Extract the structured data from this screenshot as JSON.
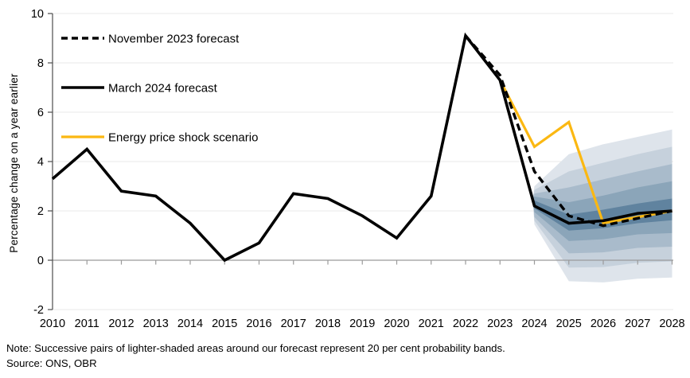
{
  "chart": {
    "y_axis_title": "Percentage change on a year earlier",
    "note": "Note: Successive pairs of lighter-shaded areas around our forecast represent 20 per cent probability bands.",
    "source": "Source: ONS, OBR"
  },
  "chart_data": {
    "type": "line",
    "title": "",
    "xlabel": "",
    "ylabel": "Percentage change on a year earlier",
    "ylim": [
      -2,
      10
    ],
    "ytick_step": 2,
    "yticks": [
      -2,
      0,
      2,
      4,
      6,
      8,
      10
    ],
    "x_years": [
      2010,
      2011,
      2012,
      2013,
      2014,
      2015,
      2016,
      2017,
      2018,
      2019,
      2020,
      2021,
      2022,
      2023,
      2024,
      2025,
      2026,
      2027,
      2028
    ],
    "grid": "horizontal-light",
    "legend_position": "top-left-inside",
    "colors": {
      "forecast_black": "#000000",
      "scenario_yellow": "#fbb812",
      "gridline": "#e9e9e9",
      "zero_axis": "#9b9b9b",
      "left_axis": "#4d4d4d"
    },
    "series": [
      {
        "name": "November 2023 forecast",
        "style": "dashed",
        "color": "#000000",
        "width": 3.4,
        "x": [
          2022,
          2023,
          2024,
          2025,
          2026,
          2027,
          2028
        ],
        "values": [
          9.1,
          7.5,
          3.6,
          1.8,
          1.4,
          1.7,
          2.0
        ]
      },
      {
        "name": "March 2024 forecast",
        "style": "solid",
        "color": "#000000",
        "width": 3.6,
        "x": [
          2010,
          2011,
          2012,
          2013,
          2014,
          2015,
          2016,
          2017,
          2018,
          2019,
          2020,
          2021,
          2022,
          2023,
          2024,
          2025,
          2026,
          2027,
          2028
        ],
        "values": [
          3.3,
          4.5,
          2.8,
          2.6,
          1.5,
          0.0,
          0.7,
          2.7,
          2.5,
          1.8,
          0.9,
          2.6,
          9.1,
          7.3,
          2.2,
          1.5,
          1.6,
          1.9,
          2.0
        ]
      },
      {
        "name": "Energy price shock scenario",
        "style": "solid",
        "color": "#fbb812",
        "width": 3.2,
        "x": [
          2023,
          2024,
          2025,
          2026,
          2027,
          2028
        ],
        "values": [
          7.3,
          4.6,
          5.6,
          1.5,
          1.75,
          2.0
        ]
      }
    ],
    "fan_bands": {
      "description": "20 per cent probability bands around March 2024 forecast, outermost (lightest) first",
      "x": [
        2023.95,
        2024,
        2025,
        2026,
        2027,
        2028
      ],
      "bands": [
        {
          "color": "#dee4eb",
          "upper": [
            2.5,
            3.0,
            4.3,
            4.7,
            5.0,
            5.3
          ],
          "lower": [
            2.5,
            1.45,
            -0.85,
            -0.9,
            -0.75,
            -0.7
          ]
        },
        {
          "color": "#c6d1dc",
          "upper": [
            2.5,
            2.85,
            3.6,
            3.95,
            4.3,
            4.6
          ],
          "lower": [
            2.5,
            1.6,
            -0.3,
            -0.28,
            -0.1,
            -0.05
          ]
        },
        {
          "color": "#a9bbcb",
          "upper": [
            2.5,
            2.7,
            2.95,
            3.28,
            3.6,
            3.9
          ],
          "lower": [
            2.5,
            1.75,
            0.28,
            0.32,
            0.5,
            0.55
          ]
        },
        {
          "color": "#8ba5b9",
          "upper": [
            2.5,
            2.58,
            2.35,
            2.62,
            2.95,
            3.2
          ],
          "lower": [
            2.5,
            1.95,
            0.78,
            0.85,
            1.05,
            1.1
          ]
        },
        {
          "color": "#60839f",
          "upper": [
            2.5,
            2.42,
            1.85,
            2.05,
            2.3,
            2.5
          ],
          "lower": [
            2.5,
            2.1,
            1.2,
            1.3,
            1.5,
            1.62
          ]
        }
      ]
    }
  }
}
